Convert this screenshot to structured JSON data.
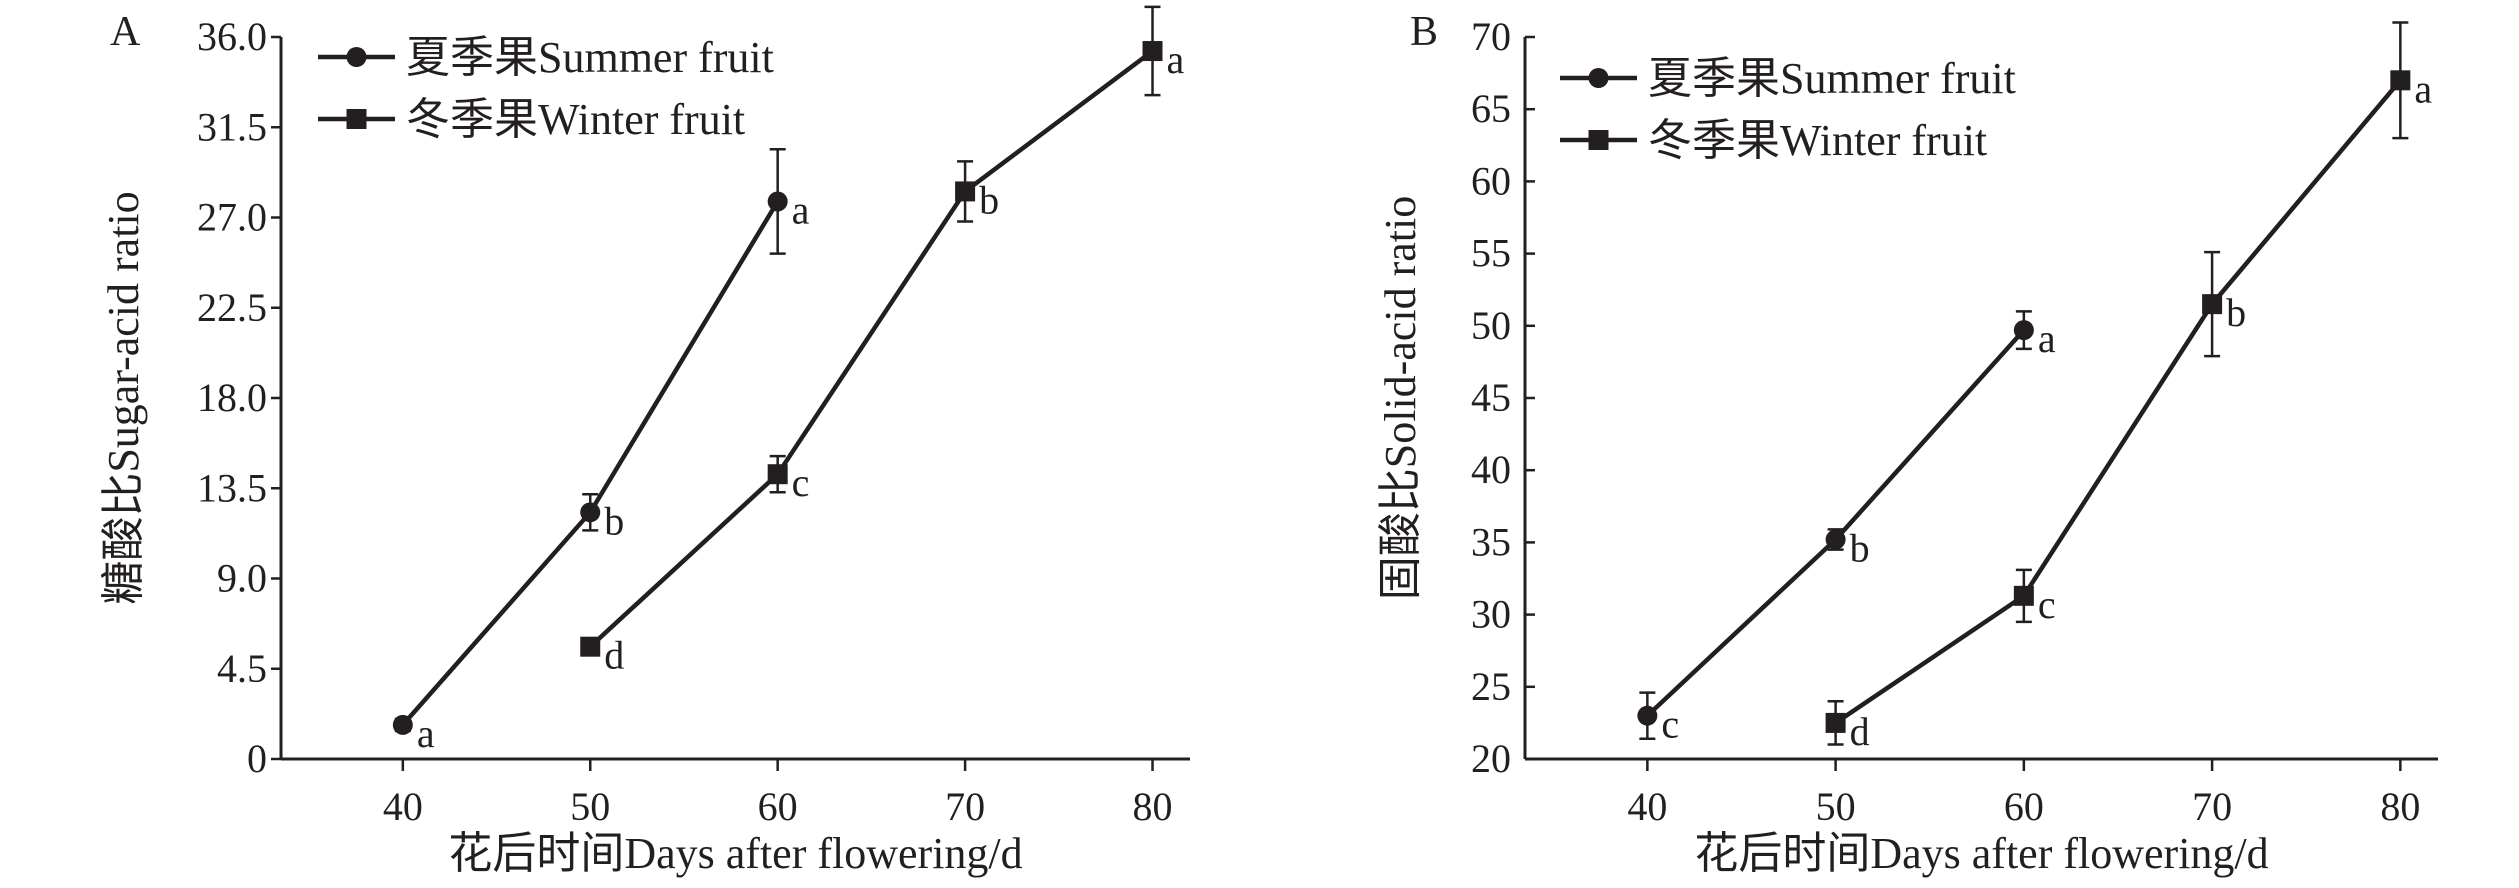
{
  "chart_data": [
    {
      "panel": "A",
      "type": "line",
      "title": "",
      "xlabel": "花后时间Days after flowering/d",
      "ylabel": "糖酸比Sugar-acid ratio",
      "xlim": [
        33.5,
        82
      ],
      "ylim": [
        0,
        36
      ],
      "xticks": [
        40,
        50,
        60,
        70,
        80
      ],
      "xtick_labels": [
        "40",
        "50",
        "60",
        "70",
        "80"
      ],
      "yticks": [
        0,
        4.5,
        9,
        13.5,
        18,
        22.5,
        27,
        31.5,
        36
      ],
      "ytick_labels": [
        "0",
        "4.5",
        "9.0",
        "13.5",
        "18.0",
        "22.5",
        "27.0",
        "31.5",
        "36.0"
      ],
      "grid": false,
      "legend_position": "top-left",
      "series": [
        {
          "name": "夏季果Summer fruit",
          "marker": "circle",
          "x": [
            40,
            50,
            60
          ],
          "y": [
            1.7,
            12.3,
            27.8
          ],
          "err": [
            0.3,
            0.9,
            2.6
          ],
          "labels": [
            "a",
            "b",
            "a"
          ]
        },
        {
          "name": "冬季果Winter fruit",
          "marker": "square",
          "x": [
            50,
            60,
            70,
            80
          ],
          "y": [
            5.6,
            14.2,
            28.3,
            35.3
          ],
          "err": [
            0.3,
            0.9,
            1.5,
            2.2
          ],
          "labels": [
            "d",
            "c",
            "b",
            "a"
          ]
        }
      ]
    },
    {
      "panel": "B",
      "type": "line",
      "title": "",
      "xlabel": "花后时间Days after flowering/d",
      "ylabel": "固酸比Solid-acid ratio",
      "xlim": [
        33.5,
        82
      ],
      "ylim": [
        20,
        70
      ],
      "xticks": [
        40,
        50,
        60,
        70,
        80
      ],
      "xtick_labels": [
        "40",
        "50",
        "60",
        "70",
        "80"
      ],
      "yticks": [
        20,
        25,
        30,
        35,
        40,
        45,
        50,
        55,
        60,
        65,
        70
      ],
      "ytick_labels": [
        "20",
        "25",
        "30",
        "35",
        "40",
        "45",
        "50",
        "55",
        "60",
        "65",
        "70"
      ],
      "grid": false,
      "legend_position": "top-left",
      "series": [
        {
          "name": "夏季果Summer fruit",
          "marker": "circle",
          "x": [
            40,
            50,
            60
          ],
          "y": [
            23,
            35.2,
            49.7
          ],
          "err": [
            1.6,
            0.7,
            1.3
          ],
          "labels": [
            "c",
            "b",
            "a"
          ]
        },
        {
          "name": "冬季果Winter fruit",
          "marker": "square",
          "x": [
            50,
            60,
            70,
            80
          ],
          "y": [
            22.5,
            31.3,
            51.5,
            67
          ],
          "err": [
            1.5,
            1.8,
            3.6,
            4
          ],
          "labels": [
            "d",
            "c",
            "b",
            "a"
          ]
        }
      ]
    }
  ]
}
